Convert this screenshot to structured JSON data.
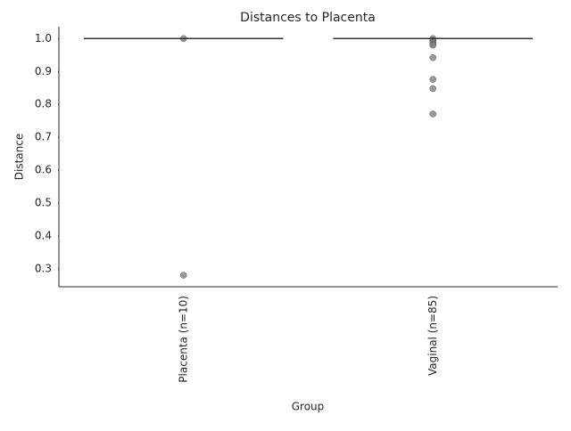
{
  "chart_data": {
    "type": "box",
    "title": "Distances to Placenta",
    "x_label": "Group",
    "y_label": "Distance",
    "categories": [
      "Placenta (n=10)",
      "Vaginal (n=85)"
    ],
    "box_color": "#333333",
    "point_color": "#808080",
    "boxes": [
      {
        "whislo": 1.0,
        "q1": 1.0,
        "median": 1.0,
        "q3": 1.0,
        "whishi": 1.0,
        "points": [
          1.0,
          0.281
        ]
      },
      {
        "whislo": 1.0,
        "q1": 1.0,
        "median": 1.0,
        "q3": 1.0,
        "whishi": 1.0,
        "points": [
          1.0,
          0.994,
          0.989,
          0.983,
          0.98,
          0.942,
          0.876,
          0.848,
          0.771
        ]
      }
    ],
    "ylim": [
      0.246,
      1.036
    ],
    "yticks": [
      0.3,
      0.4,
      0.5,
      0.6,
      0.7,
      0.8,
      0.9,
      {
        "value": 1.0,
        "label": "1.0"
      }
    ]
  }
}
